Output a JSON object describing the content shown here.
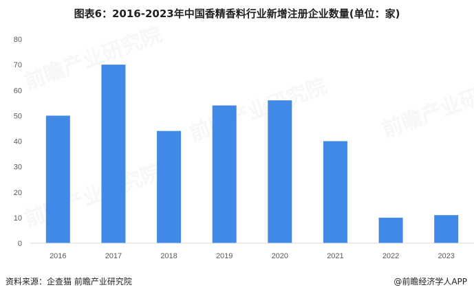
{
  "header": {
    "title": "图表6：2016-2023年中国香精香料行业新增注册企业数量(单位：家)"
  },
  "footer": {
    "source": "资料来源：企查猫 前瞻产业研究院",
    "credit": "@前瞻经济学人APP"
  },
  "colors": {
    "bar": "#4189E6",
    "grid": "#D9D9D9",
    "axis_text": "#595959"
  },
  "chart_data": {
    "type": "bar",
    "categories": [
      "2016",
      "2017",
      "2018",
      "2019",
      "2020",
      "2021",
      "2022",
      "2023"
    ],
    "values": [
      50,
      70,
      44,
      54,
      56,
      40,
      10,
      11
    ],
    "ylim": [
      0,
      80
    ],
    "yticks": [
      0,
      10,
      20,
      30,
      40,
      50,
      60,
      70,
      80
    ],
    "grid": false,
    "legend": "none"
  }
}
